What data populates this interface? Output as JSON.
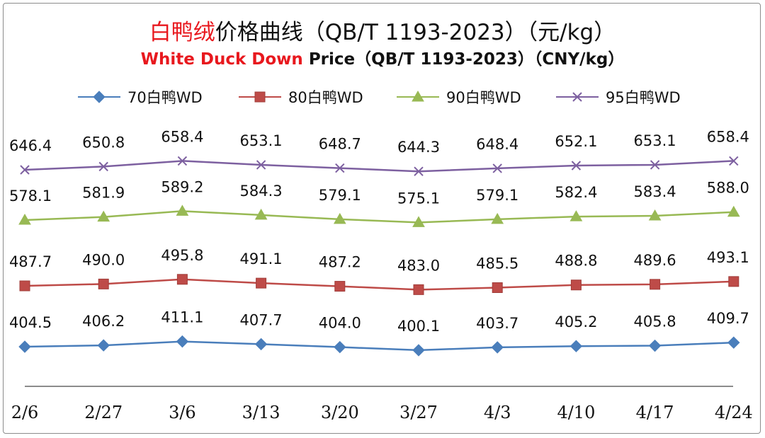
{
  "title": {
    "cn_highlight": "白鸭绒",
    "cn_rest": "价格曲线（QB/T 1193-2023）（元/kg）",
    "en_highlight": "White Duck Down",
    "en_rest": " Price（QB/T 1193-2023）（CNY/kg）"
  },
  "colors": {
    "highlight": "#e8181e",
    "series": [
      "#4a7ebb",
      "#be4b48",
      "#98b954",
      "#7d60a0"
    ]
  },
  "chart_data": {
    "type": "line",
    "categories": [
      "2/6",
      "2/27",
      "3/6",
      "3/13",
      "3/20",
      "3/27",
      "4/3",
      "4/10",
      "4/17",
      "4/24"
    ],
    "series": [
      {
        "name": "70白鸭WD",
        "marker": "diamond",
        "values": [
          404.5,
          406.2,
          411.1,
          407.7,
          404.0,
          400.1,
          403.7,
          405.2,
          405.8,
          409.7
        ]
      },
      {
        "name": "80白鸭WD",
        "marker": "square",
        "values": [
          487.7,
          490.0,
          495.8,
          491.1,
          487.2,
          483.0,
          485.5,
          488.8,
          489.6,
          493.1
        ]
      },
      {
        "name": "90白鸭WD",
        "marker": "triangle",
        "values": [
          578.1,
          581.9,
          589.2,
          584.3,
          579.1,
          575.1,
          579.1,
          582.4,
          583.4,
          588.0
        ]
      },
      {
        "name": "95白鸭WD",
        "marker": "x",
        "values": [
          646.4,
          650.8,
          658.4,
          653.1,
          648.7,
          644.3,
          648.4,
          652.1,
          653.1,
          658.4
        ]
      }
    ],
    "data_labels": true,
    "legend": "top",
    "grid": false,
    "y_axis_visible": false
  }
}
